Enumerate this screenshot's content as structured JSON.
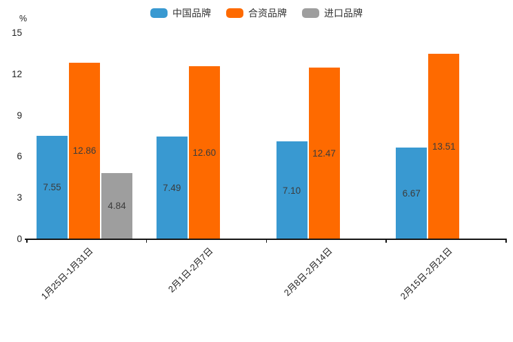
{
  "chart_data": {
    "type": "bar",
    "title": "",
    "ylabel": "%",
    "xlabel": "",
    "ylim": [
      0,
      15
    ],
    "yticks": [
      0,
      3,
      6,
      9,
      12,
      15
    ],
    "grid": false,
    "legend_position": "top-center",
    "value_label_position": "inside-center",
    "value_label_format": "2-decimals",
    "categories": [
      "1月25日-1月31日",
      "2月1日-2月7日",
      "2月8日-2月14日",
      "2月15日-2月21日"
    ],
    "series": [
      {
        "name": "中国品牌",
        "color": "#3999D1",
        "values": [
          7.55,
          7.49,
          7.1,
          6.67
        ]
      },
      {
        "name": "合资品牌",
        "color": "#FE6A00",
        "values": [
          12.86,
          12.6,
          12.47,
          13.51
        ]
      },
      {
        "name": "进口品牌",
        "color": "#9E9E9E",
        "values": [
          4.84,
          null,
          null,
          null
        ]
      }
    ],
    "colors": {
      "axis": "#111111",
      "tick_label": "#222222",
      "value_label": "#3b3b3b"
    }
  }
}
